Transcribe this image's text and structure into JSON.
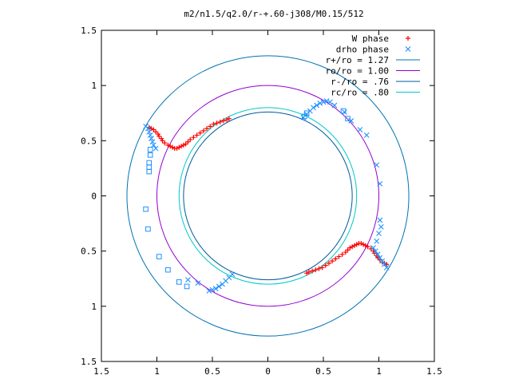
{
  "chart_data": {
    "type": "scatter",
    "title": "m2/n1.5/q2.0/r-+.60-j308/M0.15/512",
    "xlim": [
      -1.5,
      1.5
    ],
    "ylim": [
      -1.5,
      1.5
    ],
    "xticks": [
      {
        "v": -1.5,
        "label": "1.5"
      },
      {
        "v": -1,
        "label": "1"
      },
      {
        "v": -0.5,
        "label": "0.5"
      },
      {
        "v": 0,
        "label": "0"
      },
      {
        "v": 0.5,
        "label": "0.5"
      },
      {
        "v": 1,
        "label": "1"
      },
      {
        "v": 1.5,
        "label": "1.5"
      }
    ],
    "yticks": [
      {
        "v": 1.5,
        "label": "1.5"
      },
      {
        "v": 1,
        "label": "1"
      },
      {
        "v": 0.5,
        "label": "0.5"
      },
      {
        "v": 0,
        "label": "0"
      },
      {
        "v": -0.5,
        "label": "0.5"
      },
      {
        "v": -1,
        "label": "1"
      },
      {
        "v": -1.5,
        "label": "1.5"
      }
    ],
    "grid": false,
    "legend_position": "top-right",
    "legend": [
      {
        "label": "W phase",
        "kind": "plus",
        "color": "#ff0000"
      },
      {
        "label": "drho phase",
        "kind": "x",
        "color": "#1e90ff"
      },
      {
        "label": "r+/ro = 1.27",
        "kind": "line",
        "color": "#0072b2"
      },
      {
        "label": "ro/ro = 1.00",
        "kind": "line",
        "color": "#9400d3"
      },
      {
        "label": "r-/ro = .76",
        "kind": "line",
        "color": "#005a9c"
      },
      {
        "label": "rc/ro = .80",
        "kind": "line",
        "color": "#00c8c8"
      }
    ],
    "circles": [
      {
        "name": "r+/ro = 1.27",
        "r": 1.27,
        "color": "#0072b2"
      },
      {
        "name": "ro/ro = 1.00",
        "r": 1.0,
        "color": "#9400d3"
      },
      {
        "name": "r-/ro = .76",
        "r": 0.76,
        "color": "#005a9c"
      },
      {
        "name": "rc/ro = .80",
        "r": 0.8,
        "color": "#00c8c8"
      }
    ],
    "series": [
      {
        "name": "W phase",
        "marker": "plus",
        "color": "#ff0000",
        "points": [
          [
            -1.07,
            0.62
          ],
          [
            -1.05,
            0.61
          ],
          [
            -1.03,
            0.6
          ],
          [
            -1.01,
            0.58
          ],
          [
            -0.99,
            0.56
          ],
          [
            -0.98,
            0.54
          ],
          [
            -0.96,
            0.52
          ],
          [
            -0.95,
            0.5
          ],
          [
            -0.93,
            0.48
          ],
          [
            -0.9,
            0.46
          ],
          [
            -0.88,
            0.45
          ],
          [
            -0.86,
            0.44
          ],
          [
            -0.84,
            0.43
          ],
          [
            -0.82,
            0.43
          ],
          [
            -0.8,
            0.44
          ],
          [
            -0.78,
            0.45
          ],
          [
            -0.76,
            0.46
          ],
          [
            -0.74,
            0.47
          ],
          [
            -0.72,
            0.49
          ],
          [
            -0.7,
            0.51
          ],
          [
            -0.67,
            0.53
          ],
          [
            -0.64,
            0.55
          ],
          [
            -0.61,
            0.57
          ],
          [
            -0.58,
            0.59
          ],
          [
            -0.55,
            0.61
          ],
          [
            -0.52,
            0.63
          ],
          [
            -0.49,
            0.65
          ],
          [
            -0.46,
            0.66
          ],
          [
            -0.43,
            0.67
          ],
          [
            -0.4,
            0.68
          ],
          [
            -0.37,
            0.69
          ],
          [
            -0.35,
            0.7
          ],
          [
            1.07,
            -0.62
          ],
          [
            1.05,
            -0.61
          ],
          [
            1.03,
            -0.6
          ],
          [
            1.01,
            -0.58
          ],
          [
            0.99,
            -0.56
          ],
          [
            0.98,
            -0.54
          ],
          [
            0.96,
            -0.52
          ],
          [
            0.95,
            -0.5
          ],
          [
            0.93,
            -0.48
          ],
          [
            0.9,
            -0.46
          ],
          [
            0.88,
            -0.45
          ],
          [
            0.86,
            -0.44
          ],
          [
            0.84,
            -0.43
          ],
          [
            0.82,
            -0.43
          ],
          [
            0.8,
            -0.44
          ],
          [
            0.78,
            -0.45
          ],
          [
            0.76,
            -0.46
          ],
          [
            0.74,
            -0.47
          ],
          [
            0.72,
            -0.49
          ],
          [
            0.7,
            -0.51
          ],
          [
            0.67,
            -0.53
          ],
          [
            0.64,
            -0.55
          ],
          [
            0.61,
            -0.57
          ],
          [
            0.58,
            -0.59
          ],
          [
            0.55,
            -0.61
          ],
          [
            0.52,
            -0.63
          ],
          [
            0.49,
            -0.65
          ],
          [
            0.46,
            -0.66
          ],
          [
            0.43,
            -0.67
          ],
          [
            0.4,
            -0.68
          ],
          [
            0.37,
            -0.69
          ],
          [
            0.35,
            -0.7
          ]
        ]
      },
      {
        "name": "drho phase",
        "marker": "x",
        "color": "#1e90ff",
        "points": [
          [
            -1.1,
            0.63
          ],
          [
            -1.08,
            0.61
          ],
          [
            -1.07,
            0.58
          ],
          [
            -1.06,
            0.55
          ],
          [
            -1.05,
            0.52
          ],
          [
            -1.04,
            0.49
          ],
          [
            -1.03,
            0.46
          ],
          [
            -1.01,
            0.43
          ],
          [
            0.32,
            0.71
          ],
          [
            0.35,
            0.74
          ],
          [
            0.38,
            0.77
          ],
          [
            0.41,
            0.8
          ],
          [
            0.44,
            0.82
          ],
          [
            0.47,
            0.84
          ],
          [
            0.5,
            0.85
          ],
          [
            0.53,
            0.86
          ],
          [
            0.56,
            0.85
          ],
          [
            0.6,
            0.82
          ],
          [
            0.69,
            0.76
          ],
          [
            0.75,
            0.68
          ],
          [
            0.83,
            0.6
          ],
          [
            0.89,
            0.55
          ],
          [
            0.98,
            0.28
          ],
          [
            1.01,
            0.11
          ],
          [
            1.07,
            -0.65
          ],
          [
            1.05,
            -0.62
          ],
          [
            1.03,
            -0.59
          ],
          [
            1.01,
            -0.56
          ],
          [
            0.99,
            -0.53
          ],
          [
            0.97,
            -0.5
          ],
          [
            0.95,
            -0.47
          ],
          [
            1.01,
            -0.22
          ],
          [
            1.02,
            -0.28
          ],
          [
            1.0,
            -0.34
          ],
          [
            0.98,
            -0.41
          ],
          [
            -0.32,
            -0.71
          ],
          [
            -0.35,
            -0.74
          ],
          [
            -0.38,
            -0.77
          ],
          [
            -0.41,
            -0.8
          ],
          [
            -0.44,
            -0.82
          ],
          [
            -0.47,
            -0.84
          ],
          [
            -0.5,
            -0.85
          ],
          [
            -0.53,
            -0.86
          ],
          [
            -0.63,
            -0.79
          ],
          [
            -0.72,
            -0.76
          ]
        ]
      },
      {
        "name": "",
        "marker": "square",
        "color": "#1e90ff",
        "points": [
          [
            -1.06,
            0.42
          ],
          [
            -1.06,
            0.37
          ],
          [
            -1.07,
            0.3
          ],
          [
            -1.07,
            0.26
          ],
          [
            -1.07,
            0.22
          ],
          [
            -1.1,
            -0.12
          ],
          [
            -1.08,
            -0.3
          ],
          [
            -0.98,
            -0.55
          ],
          [
            -0.9,
            -0.67
          ],
          [
            -0.8,
            -0.78
          ],
          [
            -0.73,
            -0.82
          ],
          [
            0.33,
            0.72
          ],
          [
            0.35,
            0.75
          ],
          [
            0.68,
            0.77
          ],
          [
            0.72,
            0.7
          ]
        ]
      }
    ]
  }
}
